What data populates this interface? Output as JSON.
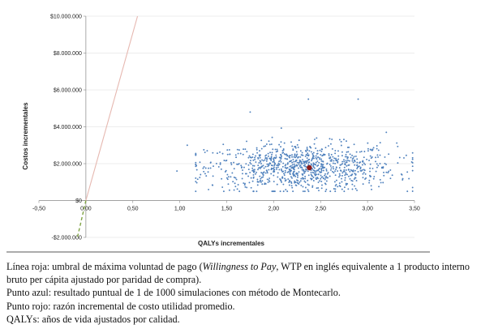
{
  "chart_data": {
    "type": "scatter",
    "xlabel": "QALYs incrementales",
    "ylabel": "Costos incrementales",
    "xlim": [
      -0.5,
      3.5
    ],
    "ylim": [
      -2000000,
      10000000
    ],
    "x_ticks": [
      -0.5,
      0,
      0.5,
      1,
      1.5,
      2,
      2.5,
      3,
      3.5
    ],
    "x_tick_labels": [
      "-0,50",
      "0,00",
      "0,50",
      "1,00",
      "1,50",
      "2,00",
      "2,50",
      "3,00",
      "3,50"
    ],
    "y_ticks": [
      -2000000,
      0,
      2000000,
      4000000,
      6000000,
      8000000,
      10000000
    ],
    "y_tick_labels": [
      "-$2.000.000",
      "$0",
      "$2.000.000",
      "$4.000.000",
      "$6.000.000",
      "$8.000.000",
      "$10.000.000"
    ],
    "grid": true,
    "series": [
      {
        "type": "line",
        "color": "#e6b8b0",
        "points": [
          [
            0,
            0
          ],
          [
            0.55,
            10000000
          ]
        ]
      },
      {
        "type": "scatter",
        "color": "#4f81bd",
        "point_count": 1000,
        "center": [
          2.3,
          1800000
        ],
        "x_range": [
          0.97,
          3.5
        ],
        "y_range": [
          500000,
          5500000
        ],
        "outliers": [
          [
            0.97,
            1600000
          ],
          [
            1.08,
            3000000
          ],
          [
            1.75,
            4800000
          ],
          [
            2.37,
            5500000
          ],
          [
            2.9,
            5500000
          ],
          [
            3.2,
            3700000
          ]
        ]
      },
      {
        "type": "point",
        "color": "#8b1a1a",
        "points": [
          [
            2.38,
            1780000
          ]
        ]
      },
      {
        "type": "line",
        "color": "#7fa344",
        "dash": true,
        "points": [
          [
            0,
            0
          ],
          [
            -0.09,
            -2000000
          ]
        ]
      }
    ]
  },
  "notes": [
    {
      "text_before": "Línea roja: umbral de máxima voluntad de pago (",
      "italic": "Willingness to Pay",
      "text_after": ", WTP en inglés equivalente a 1 producto interno bruto per cápita ajustado por paridad de compra)."
    },
    {
      "text": "Punto azul: resultado puntual de 1 de 1000 simulaciones con método de Montecarlo."
    },
    {
      "text": "Punto rojo: razón incremental de costo utilidad promedio."
    },
    {
      "text": "QALYs: años de vida ajustados por calidad."
    }
  ]
}
